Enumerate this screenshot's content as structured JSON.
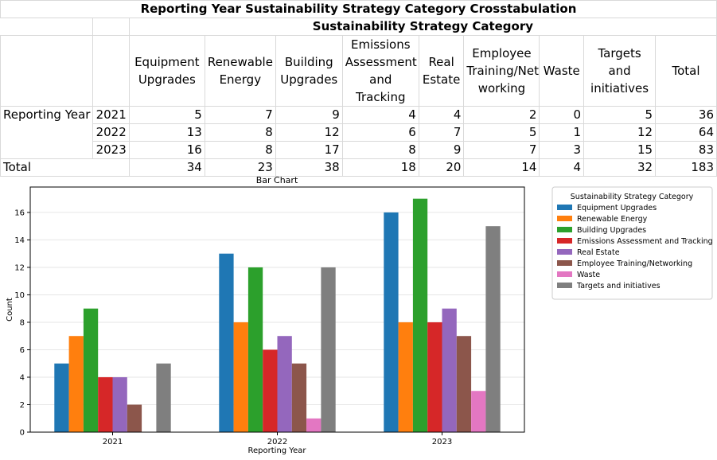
{
  "table": {
    "title": "Reporting Year Sustainability Strategy Category Crosstabulation",
    "subtitle": "Sustainability Strategy Category",
    "columns": [
      "Equipment Upgrades",
      "Renewable Energy",
      "Building Upgrades",
      "Emissions Assessment and Tracking",
      "Real Estate",
      "Employee Training/Net working",
      "Waste",
      "Targets and initiatives",
      "Total"
    ],
    "row_group_label": "Reporting Year",
    "rows": [
      {
        "year": "2021",
        "values": [
          "5",
          "7",
          "9",
          "4",
          "4",
          "2",
          "0",
          "5",
          "36"
        ]
      },
      {
        "year": "2022",
        "values": [
          "13",
          "8",
          "12",
          "6",
          "7",
          "5",
          "1",
          "12",
          "64"
        ]
      },
      {
        "year": "2023",
        "values": [
          "16",
          "8",
          "17",
          "8",
          "9",
          "7",
          "3",
          "15",
          "83"
        ]
      }
    ],
    "total_label": "Total",
    "totals": [
      "34",
      "23",
      "38",
      "18",
      "20",
      "14",
      "4",
      "32",
      "183"
    ]
  },
  "chart_data": {
    "type": "bar",
    "title": "Bar Chart",
    "xlabel": "Reporting Year",
    "ylabel": "Count",
    "categories": [
      "2021",
      "2022",
      "2023"
    ],
    "ylim": [
      0,
      17.85
    ],
    "yticks": [
      0,
      2,
      4,
      6,
      8,
      10,
      12,
      14,
      16
    ],
    "grid": true,
    "legend": {
      "title": "Sustainability Strategy Category",
      "placement": "outside right"
    },
    "series": [
      {
        "name": "Equipment Upgrades",
        "color": "#1f77b4",
        "values": [
          5,
          13,
          16
        ]
      },
      {
        "name": "Renewable Energy",
        "color": "#ff7f0e",
        "values": [
          7,
          8,
          8
        ]
      },
      {
        "name": "Building Upgrades",
        "color": "#2ca02c",
        "values": [
          9,
          12,
          17
        ]
      },
      {
        "name": "Emissions Assessment and Tracking",
        "color": "#d62728",
        "values": [
          4,
          6,
          8
        ]
      },
      {
        "name": "Real Estate",
        "color": "#9467bd",
        "values": [
          4,
          7,
          9
        ]
      },
      {
        "name": "Employee Training/Networking",
        "color": "#8c564b",
        "values": [
          2,
          5,
          7
        ]
      },
      {
        "name": "Waste",
        "color": "#e377c2",
        "values": [
          0,
          1,
          3
        ]
      },
      {
        "name": "Targets and initiatives",
        "color": "#7f7f7f",
        "values": [
          5,
          12,
          15
        ]
      }
    ]
  }
}
